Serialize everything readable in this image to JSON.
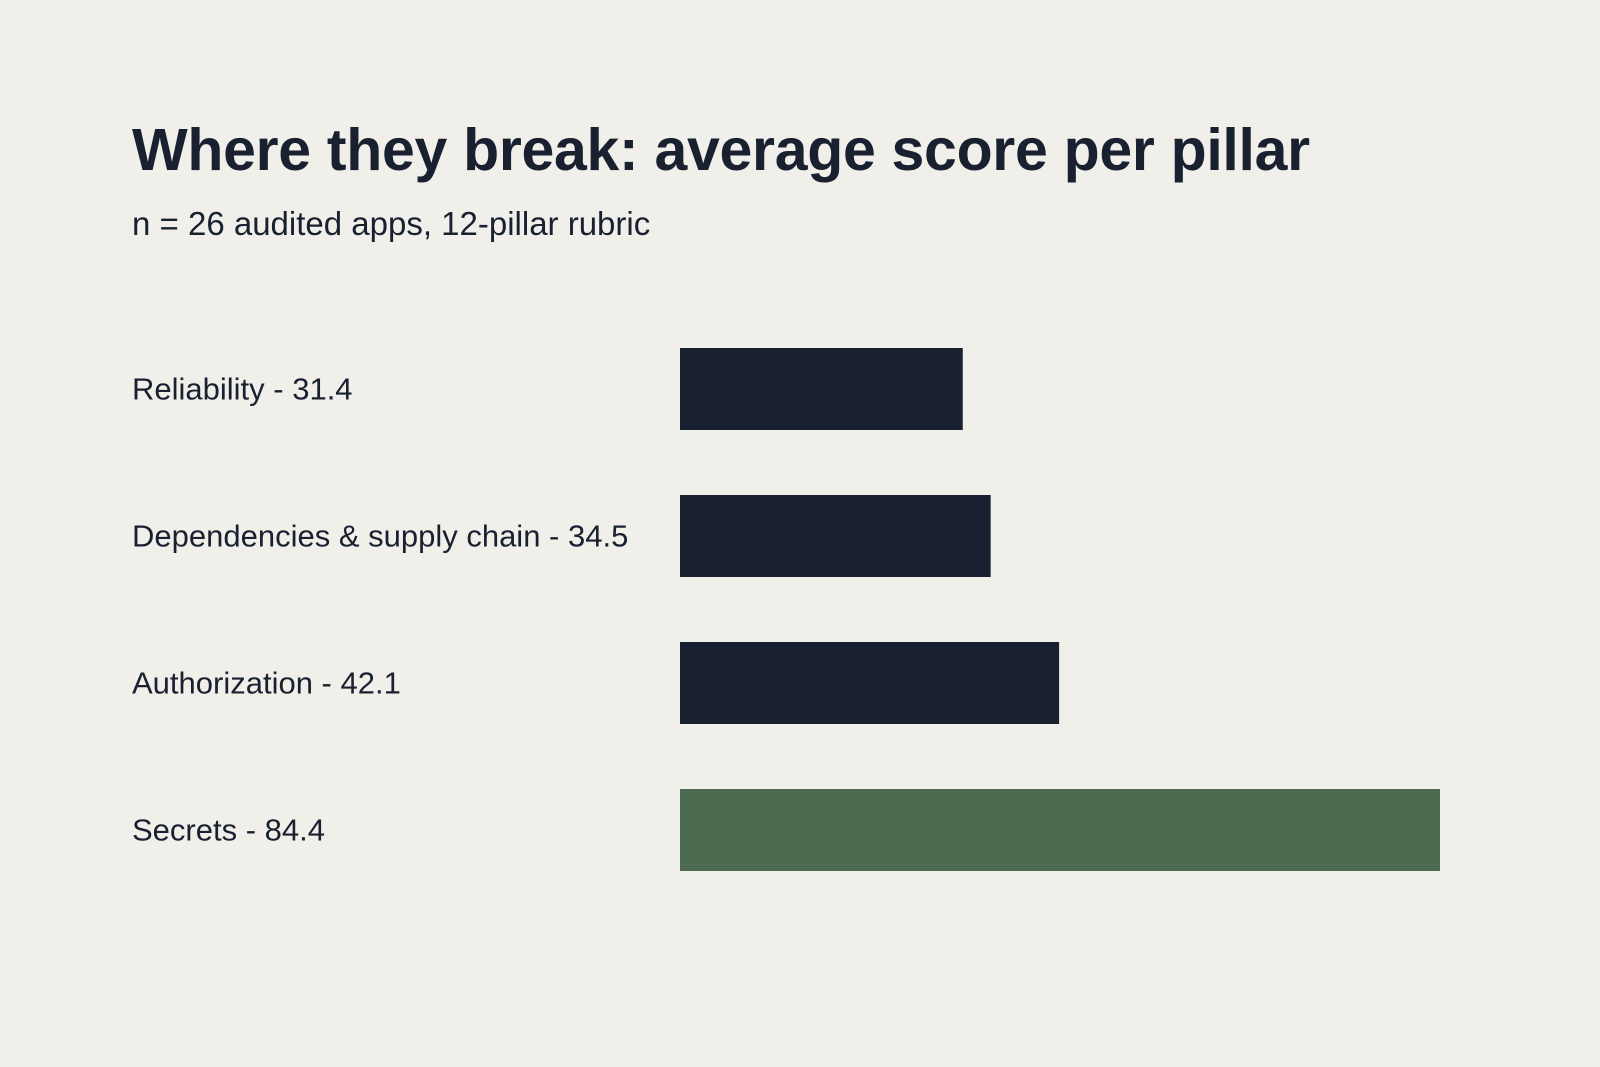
{
  "chart_data": {
    "type": "bar",
    "orientation": "horizontal",
    "title": "Where they break: average score per pillar",
    "subtitle": "n = 26 audited apps, 12-pillar rubric",
    "categories": [
      "Reliability",
      "Dependencies & supply chain",
      "Authorization",
      "Secrets"
    ],
    "values": [
      31.4,
      34.5,
      42.1,
      84.4
    ],
    "labels": [
      "Reliability - 31.4",
      "Dependencies & supply chain - 34.5",
      "Authorization - 42.1",
      "Secrets - 84.4"
    ],
    "xlim": [
      0,
      84.4
    ],
    "grid": false,
    "bar_colors": [
      "#19202f",
      "#19202f",
      "#19202f",
      "#4d6b50"
    ]
  },
  "colors": {
    "background": "#f0efea",
    "text": "#19202f",
    "bar_default": "#19202f",
    "bar_highlight": "#4d6b50"
  }
}
